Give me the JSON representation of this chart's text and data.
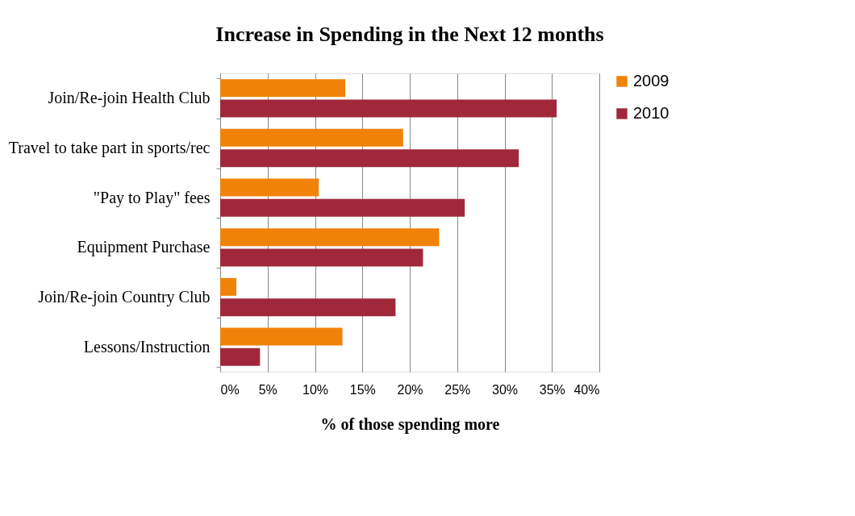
{
  "chart_data": {
    "type": "bar",
    "orientation": "horizontal",
    "title": "Increase in Spending in the Next 12 months",
    "xlabel": "% of those spending more",
    "categories": [
      "Join/Re-join Health Club",
      "Travel to take part in sports/rec",
      "\"Pay to Play\" fees",
      "Equipment Purchase",
      "Join/Re-join Country Club",
      "Lessons/Instruction"
    ],
    "series": [
      {
        "name": "2009",
        "color": "#f0820a",
        "values": [
          13.2,
          19.3,
          10.4,
          23.1,
          1.7,
          12.9
        ]
      },
      {
        "name": "2010",
        "color": "#a0283a",
        "values": [
          35.5,
          31.5,
          25.8,
          21.4,
          18.5,
          4.2
        ]
      }
    ],
    "xlim": [
      0,
      40
    ],
    "xticks": [
      {
        "value": 0,
        "label": "0%"
      },
      {
        "value": 5,
        "label": "5%"
      },
      {
        "value": 10,
        "label": "10%"
      },
      {
        "value": 15,
        "label": "15%"
      },
      {
        "value": 20,
        "label": "20%"
      },
      {
        "value": 25,
        "label": "25%"
      },
      {
        "value": 30,
        "label": "30%"
      },
      {
        "value": 35,
        "label": "35%"
      },
      {
        "value": 40,
        "label": "40%"
      }
    ],
    "grid": "x",
    "legend": "right"
  }
}
